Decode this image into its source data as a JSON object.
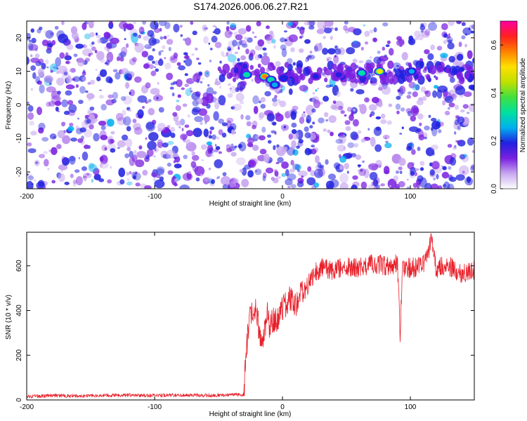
{
  "title": "S174.2026.006.06.27.R21",
  "colors": {
    "snr_line": "#e8202a",
    "axis": "#000000",
    "spectrogram_background": "#ffffff",
    "speckle": "#7a20e0"
  },
  "chart_data": [
    {
      "type": "heatmap",
      "title": "S174.2026.006.06.27.R21",
      "xlabel": "Height of straight line (km)",
      "ylabel": "Frequency (Hz)",
      "xlim": [
        -200,
        150
      ],
      "ylim": [
        -25,
        25
      ],
      "x_ticks": [
        -200,
        -100,
        0,
        100
      ],
      "x_tick_labels": [
        "-200",
        "-100",
        "0",
        "100"
      ],
      "y_ticks": [
        -20,
        -10,
        0,
        10,
        20
      ],
      "y_tick_labels": [
        "-20",
        "-10",
        "0",
        "10",
        "20"
      ],
      "colorbar": {
        "label": "Normalized spectral amplitude",
        "range": [
          0.0,
          0.7
        ],
        "ticks": [
          0.0,
          0.2,
          0.4,
          0.6
        ],
        "tick_labels": [
          "0.0",
          "0.2",
          "0.4",
          "0.6"
        ],
        "colormap": [
          "#ffffff",
          "#c8a8f0",
          "#7a20e0",
          "#2020e0",
          "#00b0f0",
          "#00e0a0",
          "#40e040",
          "#c0e000",
          "#ffe000",
          "#ff8000",
          "#ff2020",
          "#ff00a0"
        ]
      },
      "signal_band": {
        "frequency_hz": 9.5,
        "x_start_km": -50,
        "x_end_km": 150
      },
      "peaks": [
        {
          "x": -28,
          "y": 9,
          "amplitude": 0.3
        },
        {
          "x": -14,
          "y": 8.5,
          "amplitude": 0.55
        },
        {
          "x": -9,
          "y": 7.5,
          "amplitude": 0.3
        },
        {
          "x": -6,
          "y": 6,
          "amplitude": 0.25
        },
        {
          "x": 1,
          "y": 8,
          "amplitude": 0.2
        },
        {
          "x": 26,
          "y": 8.5,
          "amplitude": 0.18
        },
        {
          "x": 44,
          "y": 9,
          "amplitude": 0.18
        },
        {
          "x": 62,
          "y": 9.5,
          "amplitude": 0.3
        },
        {
          "x": 76,
          "y": 10,
          "amplitude": 0.5
        },
        {
          "x": 101,
          "y": 10,
          "amplitude": 0.25
        }
      ]
    },
    {
      "type": "line",
      "xlabel": "Height of straight line (km)",
      "ylabel": "SNR (10 * v/v)",
      "xlim": [
        -200,
        150
      ],
      "ylim": [
        0,
        750
      ],
      "x_ticks": [
        -200,
        -100,
        0,
        100
      ],
      "x_tick_labels": [
        "-200",
        "-100",
        "0",
        "100"
      ],
      "y_ticks": [
        0,
        200,
        400,
        600
      ],
      "y_tick_labels": [
        "0",
        "200",
        "400",
        "600"
      ],
      "series": [
        {
          "name": "SNR",
          "points": [
            [
              -200,
              15
            ],
            [
              -180,
              20
            ],
            [
              -160,
              18
            ],
            [
              -140,
              20
            ],
            [
              -120,
              22
            ],
            [
              -100,
              20
            ],
            [
              -80,
              22
            ],
            [
              -60,
              20
            ],
            [
              -40,
              22
            ],
            [
              -30,
              25
            ],
            [
              -29,
              150
            ],
            [
              -27,
              300
            ],
            [
              -25,
              380
            ],
            [
              -22,
              420
            ],
            [
              -20,
              380
            ],
            [
              -18,
              300
            ],
            [
              -15,
              280
            ],
            [
              -12,
              390
            ],
            [
              -10,
              330
            ],
            [
              -8,
              360
            ],
            [
              -5,
              350
            ],
            [
              -2,
              380
            ],
            [
              0,
              410
            ],
            [
              3,
              430
            ],
            [
              6,
              450
            ],
            [
              10,
              420
            ],
            [
              14,
              480
            ],
            [
              18,
              510
            ],
            [
              22,
              540
            ],
            [
              26,
              570
            ],
            [
              30,
              590
            ],
            [
              40,
              580
            ],
            [
              50,
              600
            ],
            [
              60,
              590
            ],
            [
              70,
              610
            ],
            [
              80,
              600
            ],
            [
              90,
              610
            ],
            [
              92,
              300
            ],
            [
              94,
              600
            ],
            [
              100,
              590
            ],
            [
              110,
              600
            ],
            [
              117,
              720
            ],
            [
              120,
              590
            ],
            [
              130,
              600
            ],
            [
              140,
              560
            ],
            [
              150,
              580
            ]
          ]
        }
      ]
    }
  ]
}
